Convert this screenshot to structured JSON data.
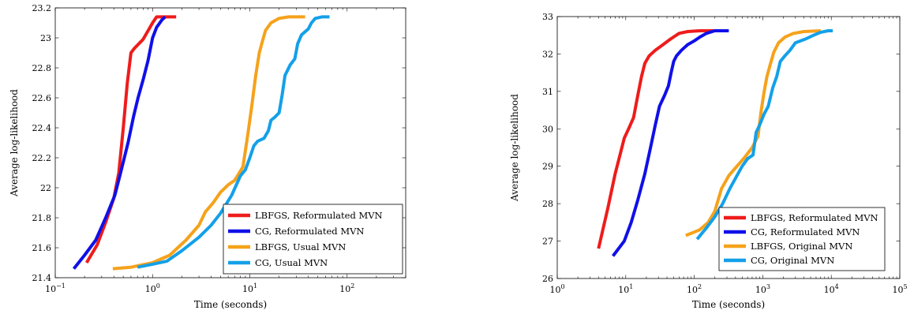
{
  "chart_data": [
    {
      "type": "line",
      "x_scale": "log",
      "xlim": [
        0.1,
        400
      ],
      "ylim": [
        21.4,
        23.2
      ],
      "xticks": [
        0.1,
        1,
        10,
        100
      ],
      "xtick_labels": [
        [
          "10",
          "−1"
        ],
        [
          "10",
          "0"
        ],
        [
          "10",
          "1"
        ],
        [
          "10",
          "2"
        ]
      ],
      "yticks": [
        21.4,
        21.6,
        21.8,
        22,
        22.2,
        22.4,
        22.6,
        22.8,
        23,
        23.2
      ],
      "ytick_labels": [
        "21.4",
        "21.6",
        "21.8",
        "22",
        "22.2",
        "22.4",
        "22.6",
        "22.8",
        "23",
        "23.2"
      ],
      "xlabel": "Time (seconds)",
      "ylabel": "Average log-likelihood",
      "grid": false,
      "legend_position": "bottom-right",
      "series": [
        {
          "name": "LBFGS, Reformulated MVN",
          "color": "#ee1c1c",
          "points": [
            [
              0.21,
              21.5
            ],
            [
              0.27,
              21.62
            ],
            [
              0.33,
              21.77
            ],
            [
              0.4,
              21.93
            ],
            [
              0.45,
              22.1
            ],
            [
              0.5,
              22.4
            ],
            [
              0.55,
              22.7
            ],
            [
              0.6,
              22.9
            ],
            [
              0.65,
              22.93
            ],
            [
              0.8,
              22.99
            ],
            [
              1.0,
              23.1
            ],
            [
              1.1,
              23.14
            ],
            [
              1.3,
              23.14
            ],
            [
              1.75,
              23.14
            ]
          ]
        },
        {
          "name": "CG, Reformulated MVN",
          "color": "#1010e8",
          "points": [
            [
              0.155,
              21.46
            ],
            [
              0.2,
              21.55
            ],
            [
              0.26,
              21.65
            ],
            [
              0.33,
              21.8
            ],
            [
              0.41,
              21.95
            ],
            [
              0.47,
              22.1
            ],
            [
              0.56,
              22.3
            ],
            [
              0.64,
              22.48
            ],
            [
              0.71,
              22.6
            ],
            [
              0.8,
              22.72
            ],
            [
              0.9,
              22.85
            ],
            [
              1.0,
              23.0
            ],
            [
              1.1,
              23.07
            ],
            [
              1.25,
              23.12
            ],
            [
              1.35,
              23.14
            ]
          ]
        },
        {
          "name": "LBFGS, Usual MVN",
          "color": "#f5a21b",
          "points": [
            [
              0.39,
              21.46
            ],
            [
              0.6,
              21.47
            ],
            [
              1.0,
              21.5
            ],
            [
              1.5,
              21.55
            ],
            [
              2.2,
              21.65
            ],
            [
              3.0,
              21.75
            ],
            [
              3.5,
              21.84
            ],
            [
              4.2,
              21.9
            ],
            [
              5.0,
              21.97
            ],
            [
              6.0,
              22.02
            ],
            [
              7.0,
              22.05
            ],
            [
              8.5,
              22.14
            ],
            [
              9.5,
              22.35
            ],
            [
              10.5,
              22.55
            ],
            [
              11.5,
              22.75
            ],
            [
              12.5,
              22.9
            ],
            [
              13.5,
              22.98
            ],
            [
              14.5,
              23.05
            ],
            [
              16.5,
              23.1
            ],
            [
              20.0,
              23.13
            ],
            [
              25.0,
              23.14
            ],
            [
              37.0,
              23.14
            ]
          ]
        },
        {
          "name": "CG, Usual MVN",
          "color": "#14a0e8",
          "points": [
            [
              0.7,
              21.47
            ],
            [
              1.0,
              21.49
            ],
            [
              1.4,
              21.51
            ],
            [
              2.0,
              21.58
            ],
            [
              3.0,
              21.67
            ],
            [
              4.0,
              21.75
            ],
            [
              5.0,
              21.83
            ],
            [
              6.5,
              21.95
            ],
            [
              8.0,
              22.08
            ],
            [
              9.0,
              22.12
            ],
            [
              10.0,
              22.2
            ],
            [
              11.0,
              22.28
            ],
            [
              12.0,
              22.31
            ],
            [
              14.0,
              22.33
            ],
            [
              15.5,
              22.38
            ],
            [
              16.5,
              22.45
            ],
            [
              18.0,
              22.47
            ],
            [
              20.0,
              22.5
            ],
            [
              21.5,
              22.62
            ],
            [
              23.0,
              22.75
            ],
            [
              26.0,
              22.82
            ],
            [
              29.0,
              22.86
            ],
            [
              31.0,
              22.96
            ],
            [
              34.0,
              23.02
            ],
            [
              40.0,
              23.06
            ],
            [
              43.0,
              23.1
            ],
            [
              47.0,
              23.13
            ],
            [
              55.0,
              23.14
            ],
            [
              66.0,
              23.14
            ]
          ]
        }
      ]
    },
    {
      "type": "line",
      "x_scale": "log",
      "xlim": [
        1,
        100000
      ],
      "ylim": [
        26,
        33
      ],
      "xticks": [
        1,
        10,
        100,
        1000,
        10000,
        100000
      ],
      "xtick_labels": [
        [
          "10",
          "0"
        ],
        [
          "10",
          "1"
        ],
        [
          "10",
          "2"
        ],
        [
          "10",
          "3"
        ],
        [
          "10",
          "4"
        ],
        [
          "10",
          "5"
        ]
      ],
      "yticks": [
        26,
        27,
        28,
        29,
        30,
        31,
        32,
        33
      ],
      "ytick_labels": [
        "26",
        "27",
        "28",
        "29",
        "30",
        "31",
        "32",
        "33"
      ],
      "xlabel": "Time (seconds)",
      "ylabel": "Average log-likelihood",
      "grid": false,
      "legend_position": "bottom-right",
      "series": [
        {
          "name": "LBFGS, Reformulated MVN",
          "color": "#ee1c1c",
          "points": [
            [
              4.0,
              26.8
            ],
            [
              5.5,
              27.9
            ],
            [
              7.0,
              28.8
            ],
            [
              8.5,
              29.4
            ],
            [
              9.5,
              29.75
            ],
            [
              11.0,
              30.0
            ],
            [
              13.0,
              30.3
            ],
            [
              15.0,
              30.9
            ],
            [
              17.0,
              31.4
            ],
            [
              19.0,
              31.75
            ],
            [
              22.0,
              31.95
            ],
            [
              27.0,
              32.1
            ],
            [
              35.0,
              32.25
            ],
            [
              45.0,
              32.4
            ],
            [
              60.0,
              32.55
            ],
            [
              80.0,
              32.6
            ],
            [
              120.0,
              32.62
            ],
            [
              200.0,
              32.62
            ]
          ]
        },
        {
          "name": "CG, Reformulated MVN",
          "color": "#1010e8",
          "points": [
            [
              6.5,
              26.6
            ],
            [
              9.5,
              27.0
            ],
            [
              12.0,
              27.5
            ],
            [
              15.0,
              28.1
            ],
            [
              19.0,
              28.8
            ],
            [
              23.0,
              29.5
            ],
            [
              27.0,
              30.1
            ],
            [
              31.0,
              30.6
            ],
            [
              37.0,
              30.9
            ],
            [
              42.0,
              31.15
            ],
            [
              46.0,
              31.5
            ],
            [
              50.0,
              31.8
            ],
            [
              55.0,
              31.95
            ],
            [
              65.0,
              32.1
            ],
            [
              80.0,
              32.25
            ],
            [
              100.0,
              32.35
            ],
            [
              120.0,
              32.45
            ],
            [
              150.0,
              32.55
            ],
            [
              200.0,
              32.62
            ],
            [
              320.0,
              32.62
            ]
          ]
        },
        {
          "name": "LBFGS, Original MVN",
          "color": "#f5a21b",
          "points": [
            [
              75,
              27.15
            ],
            [
              120,
              27.3
            ],
            [
              160,
              27.5
            ],
            [
              200,
              27.8
            ],
            [
              250,
              28.4
            ],
            [
              320,
              28.75
            ],
            [
              420,
              29.0
            ],
            [
              550,
              29.25
            ],
            [
              700,
              29.5
            ],
            [
              850,
              29.8
            ],
            [
              950,
              30.5
            ],
            [
              1050,
              31.0
            ],
            [
              1150,
              31.4
            ],
            [
              1300,
              31.75
            ],
            [
              1450,
              32.05
            ],
            [
              1700,
              32.3
            ],
            [
              2100,
              32.45
            ],
            [
              2800,
              32.55
            ],
            [
              4000,
              32.6
            ],
            [
              7000,
              32.62
            ]
          ]
        },
        {
          "name": "CG, Original MVN",
          "color": "#14a0e8",
          "points": [
            [
              110,
              27.05
            ],
            [
              150,
              27.35
            ],
            [
              200,
              27.65
            ],
            [
              260,
              28.0
            ],
            [
              330,
              28.4
            ],
            [
              420,
              28.75
            ],
            [
              500,
              29.0
            ],
            [
              600,
              29.2
            ],
            [
              720,
              29.3
            ],
            [
              800,
              29.9
            ],
            [
              900,
              30.1
            ],
            [
              1050,
              30.4
            ],
            [
              1200,
              30.6
            ],
            [
              1400,
              31.1
            ],
            [
              1600,
              31.4
            ],
            [
              1800,
              31.8
            ],
            [
              2100,
              31.95
            ],
            [
              2500,
              32.1
            ],
            [
              3000,
              32.3
            ],
            [
              4200,
              32.4
            ],
            [
              5500,
              32.5
            ],
            [
              7000,
              32.58
            ],
            [
              9000,
              32.62
            ],
            [
              10500,
              32.62
            ]
          ]
        }
      ]
    }
  ]
}
